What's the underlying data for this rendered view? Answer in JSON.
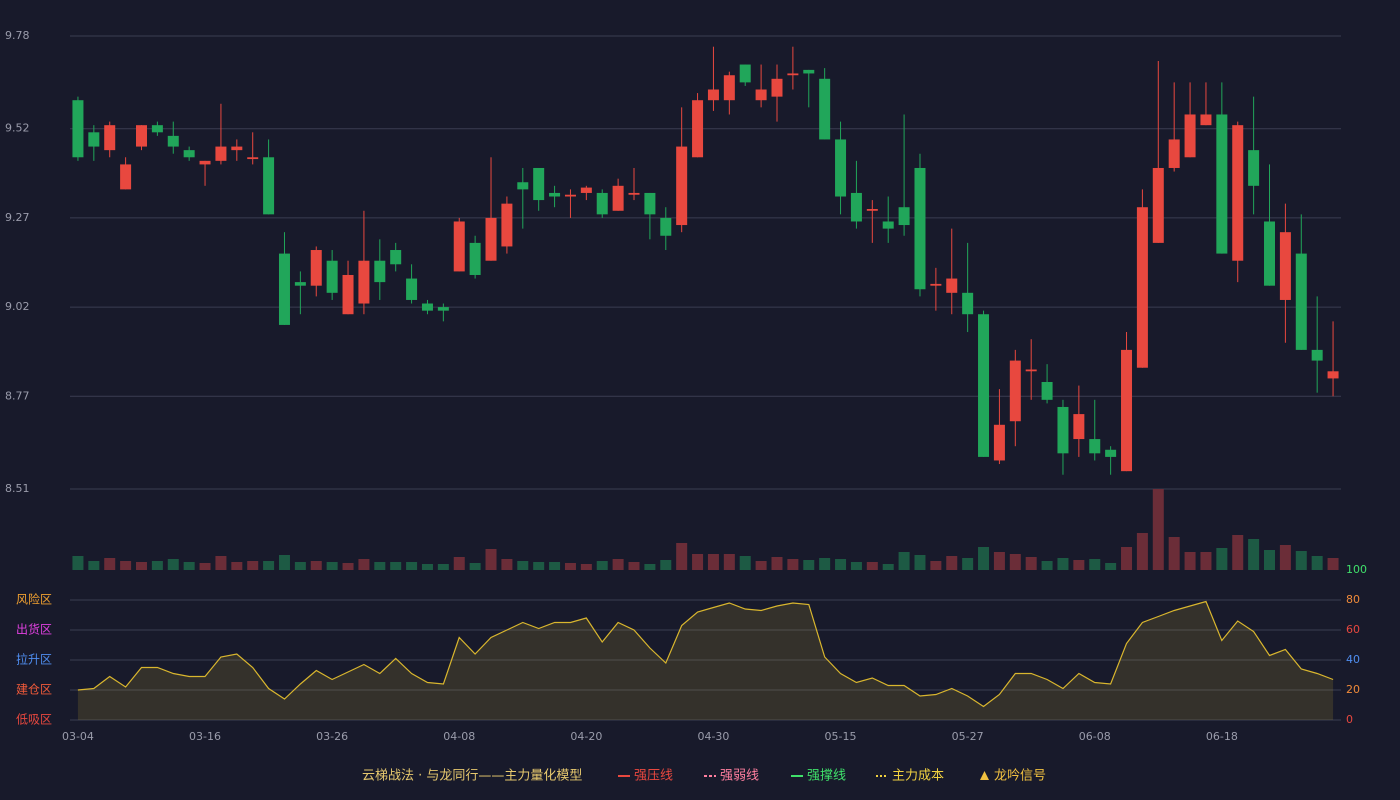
{
  "chart_data": [
    {
      "type": "candlestick",
      "categories": [
        "03-04",
        null,
        null,
        null,
        null,
        null,
        null,
        null,
        "03-16",
        null,
        null,
        null,
        null,
        null,
        null,
        null,
        "03-26",
        null,
        null,
        null,
        null,
        null,
        null,
        null,
        "04-08",
        null,
        null,
        null,
        null,
        null,
        null,
        null,
        "04-20",
        null,
        null,
        null,
        null,
        null,
        null,
        null,
        "04-30",
        null,
        null,
        null,
        null,
        null,
        null,
        null,
        "05-15",
        null,
        null,
        null,
        null,
        null,
        null,
        null,
        "05-27",
        null,
        null,
        null,
        null,
        null,
        null,
        null,
        "06-08",
        null,
        null,
        null,
        null,
        null,
        null,
        null,
        "06-18",
        null,
        null,
        null,
        null,
        null,
        null,
        null
      ],
      "open": [
        9.6,
        9.51,
        9.46,
        9.35,
        9.47,
        9.53,
        9.5,
        9.46,
        9.42,
        9.43,
        9.46,
        9.435,
        9.44,
        9.17,
        9.09,
        9.08,
        9.15,
        9.0,
        9.03,
        9.15,
        9.18,
        9.1,
        9.03,
        9.02,
        9.12,
        9.2,
        9.15,
        9.19,
        9.37,
        9.41,
        9.34,
        9.33,
        9.34,
        9.34,
        9.29,
        9.335,
        9.34,
        9.27,
        9.25,
        9.44,
        9.6,
        9.6,
        9.7,
        9.6,
        9.61,
        9.67,
        9.685,
        9.66,
        9.49,
        9.34,
        9.29,
        9.26,
        9.3,
        9.41,
        9.08,
        9.06,
        9.06,
        9.0,
        8.59,
        8.7,
        8.84,
        8.81,
        8.74,
        8.65,
        8.65,
        8.62,
        8.56,
        8.85,
        9.2,
        9.41,
        9.44,
        9.53,
        9.56,
        9.15,
        9.46,
        9.26,
        9.04,
        9.17,
        8.9,
        8.82
      ],
      "high": [
        9.61,
        9.53,
        9.54,
        9.44,
        9.53,
        9.54,
        9.54,
        9.47,
        9.43,
        9.59,
        9.49,
        9.51,
        9.49,
        9.23,
        9.12,
        9.19,
        9.18,
        9.15,
        9.29,
        9.21,
        9.2,
        9.14,
        9.04,
        9.03,
        9.27,
        9.22,
        9.44,
        9.33,
        9.41,
        9.41,
        9.36,
        9.35,
        9.36,
        9.35,
        9.38,
        9.41,
        9.34,
        9.3,
        9.58,
        9.62,
        9.75,
        9.68,
        9.7,
        9.7,
        9.7,
        9.75,
        9.685,
        9.69,
        9.54,
        9.43,
        9.32,
        9.33,
        9.56,
        9.45,
        9.13,
        9.24,
        9.2,
        9.01,
        8.79,
        8.9,
        8.93,
        8.86,
        8.76,
        8.8,
        8.76,
        8.63,
        8.95,
        9.35,
        9.71,
        9.65,
        9.65,
        9.65,
        9.65,
        9.54,
        9.61,
        9.42,
        9.31,
        9.28,
        9.05,
        8.98
      ],
      "low": [
        9.43,
        9.43,
        9.44,
        9.35,
        9.46,
        9.5,
        9.45,
        9.43,
        9.36,
        9.42,
        9.43,
        9.42,
        9.28,
        8.97,
        9.0,
        9.05,
        9.04,
        9.0,
        9.0,
        9.04,
        9.12,
        9.03,
        9.0,
        8.98,
        9.12,
        9.1,
        9.15,
        9.17,
        9.24,
        9.29,
        9.3,
        9.27,
        9.32,
        9.27,
        9.29,
        9.32,
        9.21,
        9.18,
        9.23,
        9.44,
        9.57,
        9.56,
        9.64,
        9.58,
        9.54,
        9.63,
        9.58,
        9.49,
        9.28,
        9.24,
        9.2,
        9.2,
        9.22,
        9.05,
        9.01,
        9.0,
        8.95,
        8.6,
        8.58,
        8.63,
        8.76,
        8.75,
        8.55,
        8.6,
        8.59,
        8.55,
        8.56,
        8.85,
        9.2,
        9.4,
        9.44,
        9.53,
        9.17,
        9.09,
        9.28,
        9.08,
        8.92,
        8.9,
        8.78,
        8.77
      ],
      "close": [
        9.44,
        9.47,
        9.53,
        9.42,
        9.53,
        9.51,
        9.47,
        9.44,
        9.43,
        9.47,
        9.47,
        9.44,
        9.28,
        8.97,
        9.08,
        9.18,
        9.06,
        9.11,
        9.15,
        9.09,
        9.14,
        9.04,
        9.01,
        9.01,
        9.26,
        9.11,
        9.27,
        9.31,
        9.35,
        9.32,
        9.33,
        9.335,
        9.355,
        9.28,
        9.36,
        9.34,
        9.28,
        9.22,
        9.47,
        9.6,
        9.63,
        9.67,
        9.65,
        9.63,
        9.66,
        9.675,
        9.675,
        9.49,
        9.33,
        9.26,
        9.295,
        9.24,
        9.25,
        9.07,
        9.085,
        9.1,
        9.0,
        8.6,
        8.69,
        8.87,
        8.845,
        8.76,
        8.61,
        8.72,
        8.61,
        8.6,
        8.9,
        9.3,
        9.41,
        9.49,
        9.56,
        9.56,
        9.17,
        9.53,
        9.36,
        9.08,
        9.23,
        8.9,
        8.87,
        8.84
      ],
      "up_color": "#e8483f",
      "down_color": "#21a65a",
      "ylim": [
        8.51,
        9.78
      ],
      "yticks": [
        8.51,
        8.77,
        9.02,
        9.27,
        9.52,
        9.78
      ],
      "grid": true
    },
    {
      "type": "bar",
      "values": [
        14,
        9,
        12,
        9,
        8,
        9,
        11,
        8,
        7,
        14,
        8,
        9,
        9,
        15,
        8,
        9,
        8,
        7,
        11,
        8,
        8,
        8,
        6,
        6,
        13,
        7,
        21,
        11,
        9,
        8,
        8,
        7,
        6,
        9,
        11,
        8,
        6,
        10,
        27,
        16,
        16,
        16,
        14,
        9,
        13,
        11,
        10,
        12,
        11,
        8,
        8,
        6,
        18,
        15,
        9,
        14,
        12,
        23,
        18,
        16,
        13,
        9,
        12,
        10,
        11,
        7,
        23,
        37,
        81,
        33,
        18,
        18,
        22,
        35,
        31,
        20,
        25,
        19,
        14,
        12
      ],
      "up_color": "#6b2d38",
      "down_color": "#1d5a44",
      "ylim": [
        0,
        81
      ]
    },
    {
      "type": "area",
      "values": [
        20,
        21,
        29,
        22,
        35,
        35,
        31,
        29,
        29,
        42,
        44,
        35,
        21,
        14,
        24,
        33,
        27,
        32,
        37,
        31,
        41,
        31,
        25,
        24,
        55,
        44,
        55,
        60,
        65,
        61,
        65,
        65,
        68,
        52,
        65,
        60,
        48,
        38,
        63,
        72,
        75,
        78,
        74,
        73,
        76,
        78,
        77,
        42,
        31,
        25,
        28,
        23,
        23,
        16,
        17,
        21,
        16,
        9,
        17,
        31,
        31,
        27,
        21,
        31,
        25,
        24,
        51,
        65,
        69,
        73,
        76,
        79,
        53,
        66,
        59,
        43,
        47,
        34,
        31,
        27
      ],
      "color": "#d9b62e",
      "ylim": [
        0,
        100
      ],
      "yticks": [
        0,
        20,
        40,
        60,
        80,
        100
      ],
      "ytick_colors": [
        "#e8483f",
        "#f08a3a",
        "#4f8ef0",
        "#e8483f",
        "#f08a3a",
        "#3fe06a"
      ],
      "grid": true,
      "zones": [
        {
          "label": "低吸区",
          "value": 0,
          "color": "#e8483f"
        },
        {
          "label": "建仓区",
          "value": 20,
          "color": "#f05a3a"
        },
        {
          "label": "拉升区",
          "value": 40,
          "color": "#4f8ef0"
        },
        {
          "label": "出货区",
          "value": 60,
          "color": "#e040e0"
        },
        {
          "label": "风险区",
          "value": 80,
          "color": "#f0a030"
        }
      ]
    }
  ],
  "legend": {
    "title": "云梯战法 · 与龙同行——主力量化模型",
    "title_color": "#e6c86e",
    "items": [
      {
        "name": "强压线",
        "color": "#e8483f",
        "style": "solid"
      },
      {
        "name": "强弱线",
        "color": "#ff7f9f",
        "style": "dashed"
      },
      {
        "name": "强撑线",
        "color": "#3fe06a",
        "style": "solid"
      },
      {
        "name": "主力成本",
        "color": "#f0d040",
        "style": "dotted"
      },
      {
        "name": "龙吟信号",
        "color": "#f0c040",
        "style": "triangle"
      }
    ]
  }
}
